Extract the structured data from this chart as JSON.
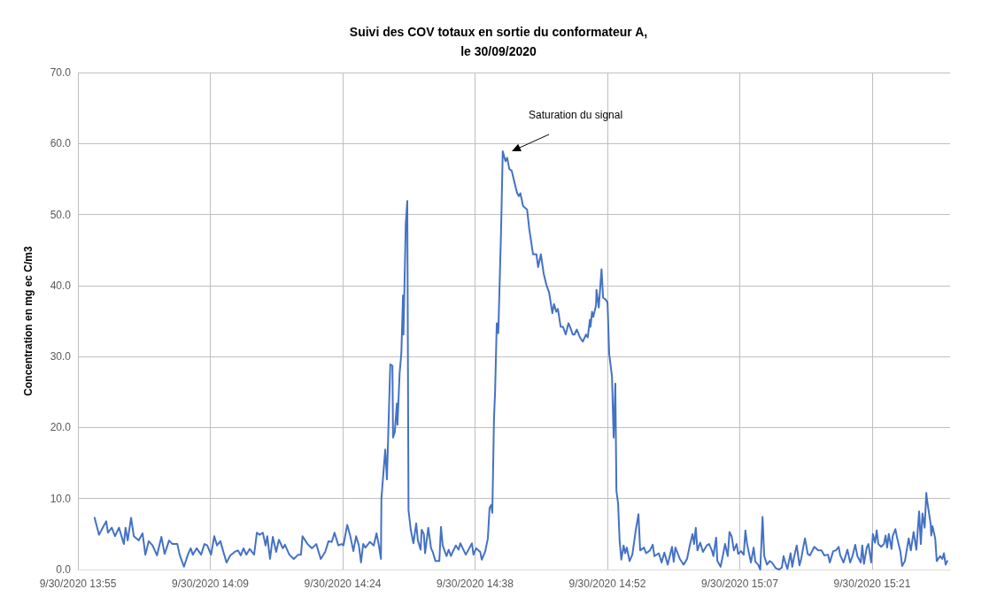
{
  "chart_data": {
    "type": "line",
    "title": "Suivi des COV totaux en sortie du conformateur A,\nle 30/09/2020",
    "ylabel": "Concentration en mg ec C/m3",
    "xlim": [
      "2020-09-30T13:55:00",
      "2020-09-30T15:29:53"
    ],
    "xticks": [
      {
        "value": "2020-09-30T13:55:00",
        "label": "9/30/2020 13:55"
      },
      {
        "value": "2020-09-30T14:09:24",
        "label": "9/30/2020 14:09"
      },
      {
        "value": "2020-09-30T14:23:48",
        "label": "9/30/2020 14:24"
      },
      {
        "value": "2020-09-30T14:38:12",
        "label": "9/30/2020 14:38"
      },
      {
        "value": "2020-09-30T14:52:36",
        "label": "9/30/2020 14:52"
      },
      {
        "value": "2020-09-30T15:07:00",
        "label": "9/30/2020 15:07"
      },
      {
        "value": "2020-09-30T15:21:24",
        "label": "9/30/2020 15:21"
      }
    ],
    "ylim": [
      0,
      70
    ],
    "yticks": [
      {
        "value": 0,
        "label": "0.0"
      },
      {
        "value": 10,
        "label": "10.0"
      },
      {
        "value": 20,
        "label": "20.0"
      },
      {
        "value": 30,
        "label": "30.0"
      },
      {
        "value": 40,
        "label": "40.0"
      },
      {
        "value": 50,
        "label": "50.0"
      },
      {
        "value": 60,
        "label": "60.0"
      },
      {
        "value": 70,
        "label": "70.0"
      }
    ],
    "grid": true,
    "annotations": [
      "Saturation du signal"
    ],
    "series": [
      {
        "color": "#4472c4",
        "x": [
          "2020-09-30T13:56:49",
          "2020-09-30T13:57:18",
          "2020-09-30T13:57:47",
          "2020-09-30T13:58:05",
          "2020-09-30T13:58:16",
          "2020-09-30T13:58:41",
          "2020-09-30T13:59:02",
          "2020-09-30T13:59:28",
          "2020-09-30T14:00:00",
          "2020-09-30T14:00:11",
          "2020-09-30T14:00:25",
          "2020-09-30T14:00:47",
          "2020-09-30T14:01:05",
          "2020-09-30T14:01:37",
          "2020-09-30T14:02:02",
          "2020-09-30T14:02:20",
          "2020-09-30T14:02:42",
          "2020-09-30T14:03:07",
          "2020-09-30T14:03:36",
          "2020-09-30T14:04:05",
          "2020-09-30T14:04:26",
          "2020-09-30T14:04:55",
          "2020-09-30T14:05:17",
          "2020-09-30T14:05:49",
          "2020-09-30T14:06:04",
          "2020-09-30T14:06:32",
          "2020-09-30T14:06:58",
          "2020-09-30T14:07:16",
          "2020-09-30T14:07:30",
          "2020-09-30T14:07:55",
          "2020-09-30T14:08:24",
          "2020-09-30T14:08:46",
          "2020-09-30T14:09:04",
          "2020-09-30T14:09:29",
          "2020-09-30T14:09:50",
          "2020-09-30T14:10:08",
          "2020-09-30T14:10:30",
          "2020-09-30T14:10:48",
          "2020-09-30T14:11:10",
          "2020-09-30T14:11:35",
          "2020-09-30T14:12:04",
          "2020-09-30T14:12:25",
          "2020-09-30T14:12:43",
          "2020-09-30T14:13:01",
          "2020-09-30T14:13:19",
          "2020-09-30T14:13:41",
          "2020-09-30T14:14:10",
          "2020-09-30T14:14:28",
          "2020-09-30T14:14:46",
          "2020-09-30T14:15:07",
          "2020-09-30T14:15:25",
          "2020-09-30T14:15:36",
          "2020-09-30T14:15:54",
          "2020-09-30T14:16:12",
          "2020-09-30T14:16:34",
          "2020-09-30T14:16:52",
          "2020-09-30T14:17:17",
          "2020-09-30T14:17:31",
          "2020-09-30T14:18:00",
          "2020-09-30T14:18:29",
          "2020-09-30T14:18:58",
          "2020-09-30T14:19:16",
          "2020-09-30T14:19:26",
          "2020-09-30T14:19:59",
          "2020-09-30T14:20:28",
          "2020-09-30T14:20:56",
          "2020-09-30T14:21:25",
          "2020-09-30T14:21:54",
          "2020-09-30T14:22:16",
          "2020-09-30T14:22:37",
          "2020-09-30T14:22:55",
          "2020-09-30T14:23:20",
          "2020-09-30T14:23:42",
          "2020-09-30T14:23:53",
          "2020-09-30T14:24:18",
          "2020-09-30T14:24:36",
          "2020-09-30T14:24:58",
          "2020-09-30T14:25:16",
          "2020-09-30T14:25:34",
          "2020-09-30T14:25:48",
          "2020-09-30T14:26:02",
          "2020-09-30T14:26:17",
          "2020-09-30T14:26:46",
          "2020-09-30T14:27:11",
          "2020-09-30T14:27:29",
          "2020-09-30T14:27:43",
          "2020-09-30T14:27:58",
          "2020-09-30T14:28:01",
          "2020-09-30T14:28:26",
          "2020-09-30T14:28:37",
          "2020-09-30T14:28:59",
          "2020-09-30T14:29:13",
          "2020-09-30T14:29:17",
          "2020-09-30T14:29:28",
          "2020-09-30T14:29:42",
          "2020-09-30T14:29:46",
          "2020-09-30T14:30:00",
          "2020-09-30T14:30:11",
          "2020-09-30T14:30:22",
          "2020-09-30T14:30:25",
          "2020-09-30T14:30:40",
          "2020-09-30T14:30:50",
          "2020-09-30T14:30:58",
          "2020-09-30T14:31:12",
          "2020-09-30T14:31:30",
          "2020-09-30T14:31:48",
          "2020-09-30T14:31:59",
          "2020-09-30T14:32:17",
          "2020-09-30T14:32:24",
          "2020-09-30T14:32:38",
          "2020-09-30T14:32:46",
          "2020-09-30T14:33:07",
          "2020-09-30T14:33:25",
          "2020-09-30T14:33:36",
          "2020-09-30T14:33:54",
          "2020-09-30T14:34:19",
          "2020-09-30T14:34:30",
          "2020-09-30T14:34:41",
          "2020-09-30T14:35:06",
          "2020-09-30T14:35:20",
          "2020-09-30T14:35:35",
          "2020-09-30T14:35:46",
          "2020-09-30T14:36:07",
          "2020-09-30T14:36:25",
          "2020-09-30T14:36:36",
          "2020-09-30T14:37:12",
          "2020-09-30T14:37:52",
          "2020-09-30T14:38:02",
          "2020-09-30T14:38:20",
          "2020-09-30T14:38:46",
          "2020-09-30T14:38:56",
          "2020-09-30T14:39:18",
          "2020-09-30T14:39:36",
          "2020-09-30T14:39:47",
          "2020-09-30T14:39:58",
          "2020-09-30T14:40:05",
          "2020-09-30T14:40:16",
          "2020-09-30T14:40:23",
          "2020-09-30T14:40:34",
          "2020-09-30T14:40:44",
          "2020-09-30T14:41:02",
          "2020-09-30T14:41:13",
          "2020-09-30T14:41:31",
          "2020-09-30T14:41:42",
          "2020-09-30T14:41:56",
          "2020-09-30T14:42:11",
          "2020-09-30T14:42:29",
          "2020-09-30T14:42:47",
          "2020-09-30T14:42:58",
          "2020-09-30T14:43:08",
          "2020-09-30T14:43:26",
          "2020-09-30T14:43:52",
          "2020-09-30T14:44:06",
          "2020-09-30T14:44:31",
          "2020-09-30T14:44:53",
          "2020-09-30T14:45:04",
          "2020-09-30T14:45:22",
          "2020-09-30T14:45:40",
          "2020-09-30T14:45:58",
          "2020-09-30T14:46:16",
          "2020-09-30T14:46:26",
          "2020-09-30T14:46:37",
          "2020-09-30T14:46:48",
          "2020-09-30T14:47:02",
          "2020-09-30T14:47:13",
          "2020-09-30T14:47:31",
          "2020-09-30T14:47:46",
          "2020-09-30T14:48:04",
          "2020-09-30T14:48:22",
          "2020-09-30T14:48:32",
          "2020-09-30T14:48:50",
          "2020-09-30T14:49:01",
          "2020-09-30T14:49:16",
          "2020-09-30T14:49:37",
          "2020-09-30T14:49:55",
          "2020-09-30T14:50:17",
          "2020-09-30T14:50:28",
          "2020-09-30T14:50:42",
          "2020-09-30T14:50:46",
          "2020-09-30T14:50:56",
          "2020-09-30T14:51:04",
          "2020-09-30T14:51:22",
          "2020-09-30T14:51:25",
          "2020-09-30T14:51:40",
          "2020-09-30T14:51:58",
          "2020-09-30T14:52:08",
          "2020-09-30T14:52:26",
          "2020-09-30T14:52:37",
          "2020-09-30T14:52:48",
          "2020-09-30T14:53:06",
          "2020-09-30T14:53:17",
          "2020-09-30T14:53:28",
          "2020-09-30T14:53:35",
          "2020-09-30T14:53:46",
          "2020-09-30T14:53:56",
          "2020-09-30T14:54:07",
          "2020-09-30T14:54:22",
          "2020-09-30T14:54:32",
          "2020-09-30T14:54:43",
          "2020-09-30T14:55:01",
          "2020-09-30T14:55:19",
          "2020-09-30T14:55:41",
          "2020-09-30T14:55:59",
          "2020-09-30T14:56:10",
          "2020-09-30T14:56:35",
          "2020-09-30T14:56:49",
          "2020-09-30T14:57:14",
          "2020-09-30T14:57:32",
          "2020-09-30T14:57:43",
          "2020-09-30T14:58:12",
          "2020-09-30T14:58:30",
          "2020-09-30T14:58:48",
          "2020-09-30T14:59:10",
          "2020-09-30T14:59:38",
          "2020-09-30T14:59:49",
          "2020-09-30T15:00:00",
          "2020-09-30T15:00:29",
          "2020-09-30T15:00:54",
          "2020-09-30T15:01:16",
          "2020-09-30T15:01:34",
          "2020-09-30T15:01:52",
          "2020-09-30T15:02:02",
          "2020-09-30T15:02:13",
          "2020-09-30T15:02:24",
          "2020-09-30T15:02:42",
          "2020-09-30T15:03:00",
          "2020-09-30T15:03:25",
          "2020-09-30T15:03:40",
          "2020-09-30T15:03:58",
          "2020-09-30T15:04:08",
          "2020-09-30T15:04:26",
          "2020-09-30T15:04:34",
          "2020-09-30T15:04:55",
          "2020-09-30T15:05:13",
          "2020-09-30T15:05:24",
          "2020-09-30T15:05:42",
          "2020-09-30T15:05:53",
          "2020-09-30T15:06:07",
          "2020-09-30T15:06:22",
          "2020-09-30T15:06:40",
          "2020-09-30T15:06:50",
          "2020-09-30T15:07:08",
          "2020-09-30T15:07:26",
          "2020-09-30T15:07:37",
          "2020-09-30T15:07:48",
          "2020-09-30T15:08:13",
          "2020-09-30T15:08:31",
          "2020-09-30T15:08:42",
          "2020-09-30T15:09:00",
          "2020-09-30T15:09:14",
          "2020-09-30T15:09:29",
          "2020-09-30T15:09:40",
          "2020-09-30T15:09:58",
          "2020-09-30T15:10:16",
          "2020-09-30T15:10:30",
          "2020-09-30T15:10:55",
          "2020-09-30T15:11:17",
          "2020-09-30T15:11:35",
          "2020-09-30T15:11:46",
          "2020-09-30T15:11:56",
          "2020-09-30T15:12:11",
          "2020-09-30T15:12:32",
          "2020-09-30T15:12:43",
          "2020-09-30T15:12:54",
          "2020-09-30T15:13:12",
          "2020-09-30T15:13:30",
          "2020-09-30T15:13:41",
          "2020-09-30T15:13:55",
          "2020-09-30T15:14:06",
          "2020-09-30T15:14:24",
          "2020-09-30T15:14:38",
          "2020-09-30T15:15:07",
          "2020-09-30T15:15:32",
          "2020-09-30T15:15:54",
          "2020-09-30T15:16:12",
          "2020-09-30T15:16:37",
          "2020-09-30T15:16:48",
          "2020-09-30T15:17:10",
          "2020-09-30T15:17:28",
          "2020-09-30T15:17:46",
          "2020-09-30T15:17:56",
          "2020-09-30T15:18:18",
          "2020-09-30T15:18:43",
          "2020-09-30T15:19:01",
          "2020-09-30T15:19:16",
          "2020-09-30T15:19:34",
          "2020-09-30T15:19:48",
          "2020-09-30T15:20:10",
          "2020-09-30T15:20:20",
          "2020-09-30T15:20:31",
          "2020-09-30T15:20:49",
          "2020-09-30T15:21:00",
          "2020-09-30T15:21:18",
          "2020-09-30T15:21:29",
          "2020-09-30T15:21:43",
          "2020-09-30T15:21:54",
          "2020-09-30T15:22:05",
          "2020-09-30T15:22:23",
          "2020-09-30T15:22:41",
          "2020-09-30T15:22:52",
          "2020-09-30T15:23:02",
          "2020-09-30T15:23:13",
          "2020-09-30T15:23:31",
          "2020-09-30T15:23:38",
          "2020-09-30T15:23:56",
          "2020-09-30T15:24:07",
          "2020-09-30T15:24:29",
          "2020-09-30T15:24:40",
          "2020-09-30T15:24:58",
          "2020-09-30T15:25:23",
          "2020-09-30T15:25:37",
          "2020-09-30T15:25:55",
          "2020-09-30T15:26:13",
          "2020-09-30T15:26:31",
          "2020-09-30T15:26:42",
          "2020-09-30T15:26:53",
          "2020-09-30T15:27:07",
          "2020-09-30T15:27:18",
          "2020-09-30T15:27:22",
          "2020-09-30T15:27:47",
          "2020-09-30T15:27:50",
          "2020-09-30T15:27:58",
          "2020-09-30T15:28:16",
          "2020-09-30T15:28:26",
          "2020-09-30T15:28:48",
          "2020-09-30T15:29:02",
          "2020-09-30T15:29:13",
          "2020-09-30T15:29:24",
          "2020-09-30T15:29:35"
        ],
        "values": [
          7.3,
          4.9,
          6.1,
          6.8,
          5.2,
          5.9,
          4.7,
          5.9,
          3.6,
          5.9,
          4.1,
          7.3,
          4.7,
          4.1,
          5.1,
          2.1,
          4.0,
          3.4,
          2.0,
          4.6,
          2.2,
          4.1,
          3.6,
          3.6,
          2.1,
          0.4,
          2.1,
          3.0,
          2.1,
          3.0,
          2.1,
          3.6,
          3.4,
          2.1,
          4.7,
          3.4,
          4.0,
          2.6,
          1.0,
          2.0,
          2.5,
          2.7,
          2.0,
          3.0,
          2.1,
          2.9,
          2.1,
          5.2,
          4.9,
          5.2,
          3.4,
          4.7,
          1.5,
          4.6,
          2.5,
          4.2,
          3.0,
          3.5,
          2.1,
          1.5,
          2.1,
          2.1,
          4.7,
          3.6,
          3.0,
          3.6,
          1.5,
          2.5,
          4.0,
          3.9,
          5.2,
          3.4,
          3.6,
          3.4,
          6.3,
          4.9,
          2.6,
          4.7,
          3.4,
          1.0,
          3.6,
          3.1,
          3.9,
          3.4,
          5.1,
          3.6,
          1.5,
          10.0,
          16.9,
          12.7,
          28.9,
          28.7,
          18.6,
          19.3,
          23.4,
          20.4,
          27.7,
          30.4,
          38.6,
          33.1,
          48.7,
          51.9,
          8.4,
          5.7,
          3.7,
          6.5,
          4.1,
          2.8,
          5.6,
          5.0,
          2.3,
          5.9,
          3.0,
          2.5,
          1.2,
          1.2,
          6.0,
          3.4,
          1.9,
          2.8,
          1.9,
          2.5,
          3.4,
          2.8,
          3.7,
          2.1,
          3.7,
          2.1,
          3.0,
          2.5,
          1.4,
          2.5,
          4.4,
          8.7,
          9.1,
          8.0,
          21.3,
          25.0,
          34.7,
          33.3,
          47.6,
          58.9,
          57.5,
          58.0,
          56.4,
          56.2,
          54.6,
          53.0,
          52.6,
          53.0,
          51.2,
          50.7,
          48.0,
          44.4,
          44.4,
          42.6,
          44.4,
          41.7,
          40.1,
          39.0,
          37.6,
          36.1,
          37.4,
          36.3,
          36.7,
          34.2,
          34.2,
          33.1,
          34.7,
          34.2,
          33.1,
          33.1,
          33.8,
          32.7,
          32.1,
          33.1,
          32.7,
          35.2,
          34.2,
          36.3,
          35.6,
          37.2,
          39.4,
          36.9,
          42.3,
          38.3,
          38.0,
          37.6,
          30.4,
          27.2,
          18.6,
          26.2,
          11.1,
          9.3,
          4.1,
          1.4,
          3.4,
          2.3,
          3.1,
          1.2,
          2.1,
          5.5,
          7.8,
          2.7,
          3.1,
          2.3,
          2.7,
          3.5,
          1.9,
          2.3,
          1.0,
          2.4,
          0.7,
          3.2,
          1.1,
          3.1,
          1.5,
          0.7,
          1.5,
          3.4,
          5.0,
          3.6,
          5.9,
          2.7,
          3.8,
          2.5,
          3.4,
          3.6,
          2.7,
          1.9,
          4.5,
          1.2,
          0.4,
          2.3,
          3.6,
          1.9,
          5.3,
          4.7,
          2.7,
          3.6,
          2.2,
          2.6,
          2.1,
          5.5,
          3.6,
          1.0,
          3.1,
          1.1,
          0.7,
          0.0,
          7.4,
          1.9,
          0.7,
          1.2,
          1.0,
          0.2,
          0.0,
          0.3,
          1.9,
          1.1,
          0.1,
          2.3,
          0.4,
          1.7,
          3.4,
          0.6,
          1.5,
          3.2,
          4.4,
          2.2,
          2.0,
          3.2,
          2.7,
          2.7,
          2.0,
          2.1,
          1.0,
          2.6,
          2.7,
          3.2,
          2.0,
          1.0,
          2.8,
          1.0,
          1.9,
          3.5,
          1.9,
          1.0,
          3.4,
          0.8,
          3.1,
          3.6,
          1.0,
          5.0,
          3.8,
          5.5,
          3.6,
          3.2,
          3.6,
          4.8,
          3.1,
          5.0,
          2.9,
          4.7,
          5.7,
          4.5,
          2.5,
          0.5,
          1.2,
          4.4,
          2.7,
          5.3,
          2.8,
          8.2,
          3.6,
          7.9,
          5.9,
          10.8,
          9.9,
          6.3,
          4.8,
          6.1,
          4.4,
          1.2,
          1.9,
          1.5,
          2.3,
          0.7,
          1.2
        ]
      }
    ]
  }
}
